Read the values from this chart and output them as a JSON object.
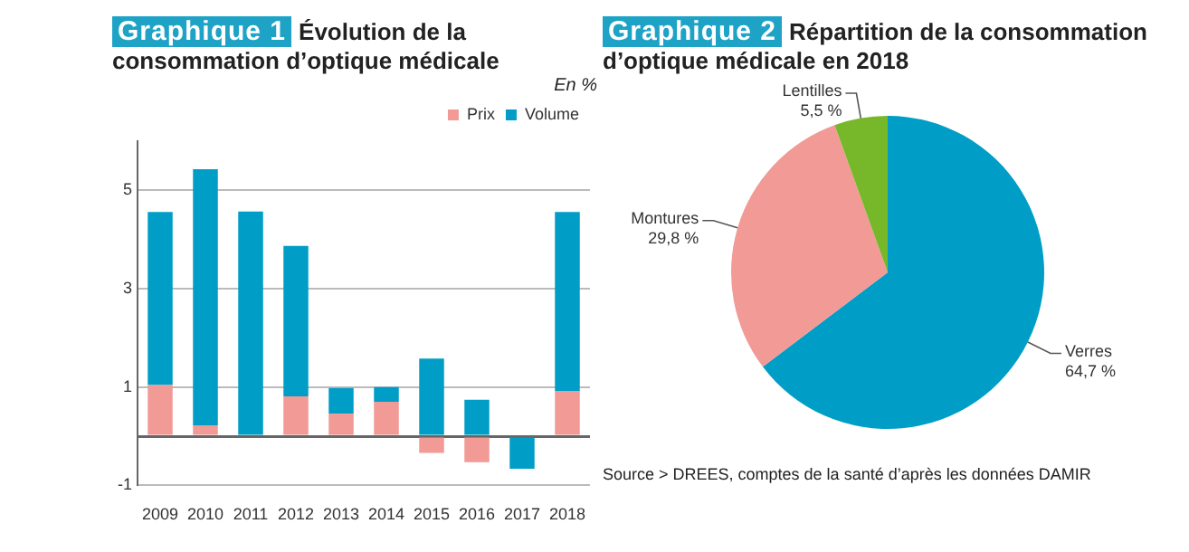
{
  "chart_data": [
    {
      "type": "bar",
      "title": "Évolution de la consommation d’optique médicale",
      "ylabel": "En %",
      "annotations": [
        "Graphique 1"
      ],
      "categories": [
        "2009",
        "2010",
        "2011",
        "2012",
        "2013",
        "2014",
        "2015",
        "2016",
        "2017",
        "2018"
      ],
      "series": [
        {
          "name": "Prix",
          "color": "#f19a96",
          "values": [
            1.04,
            0.22,
            0,
            0.81,
            0.46,
            0.7,
            -0.34,
            -0.53,
            0,
            0.92
          ]
        },
        {
          "name": "Volume",
          "color": "#009ec6",
          "values": [
            3.52,
            5.21,
            4.57,
            3.06,
            0.52,
            0.3,
            1.58,
            0.74,
            -0.66,
            3.64
          ]
        }
      ],
      "stacked": true,
      "ylim": [
        -1,
        6
      ],
      "yticks": [
        -1,
        {
          "value": 0,
          "label": null
        },
        1,
        3,
        5
      ],
      "grid": "y",
      "legend": "top right"
    },
    {
      "type": "pie",
      "title": "Répartition de la consommation d’optique médicale en 2018",
      "annotations": [
        "Graphique 2",
        "Source > DREES, comptes de la santé d’après les données DAMIR"
      ],
      "categories": [
        "Verres",
        "Montures",
        "Lentilles"
      ],
      "values": [
        64.7,
        29.8,
        5.5
      ],
      "colors": [
        "#009ec6",
        "#f19a96",
        "#77b82a"
      ],
      "value_labels": [
        "64,7 %",
        "29,8 %",
        "5,5 %"
      ],
      "legend": false
    }
  ]
}
